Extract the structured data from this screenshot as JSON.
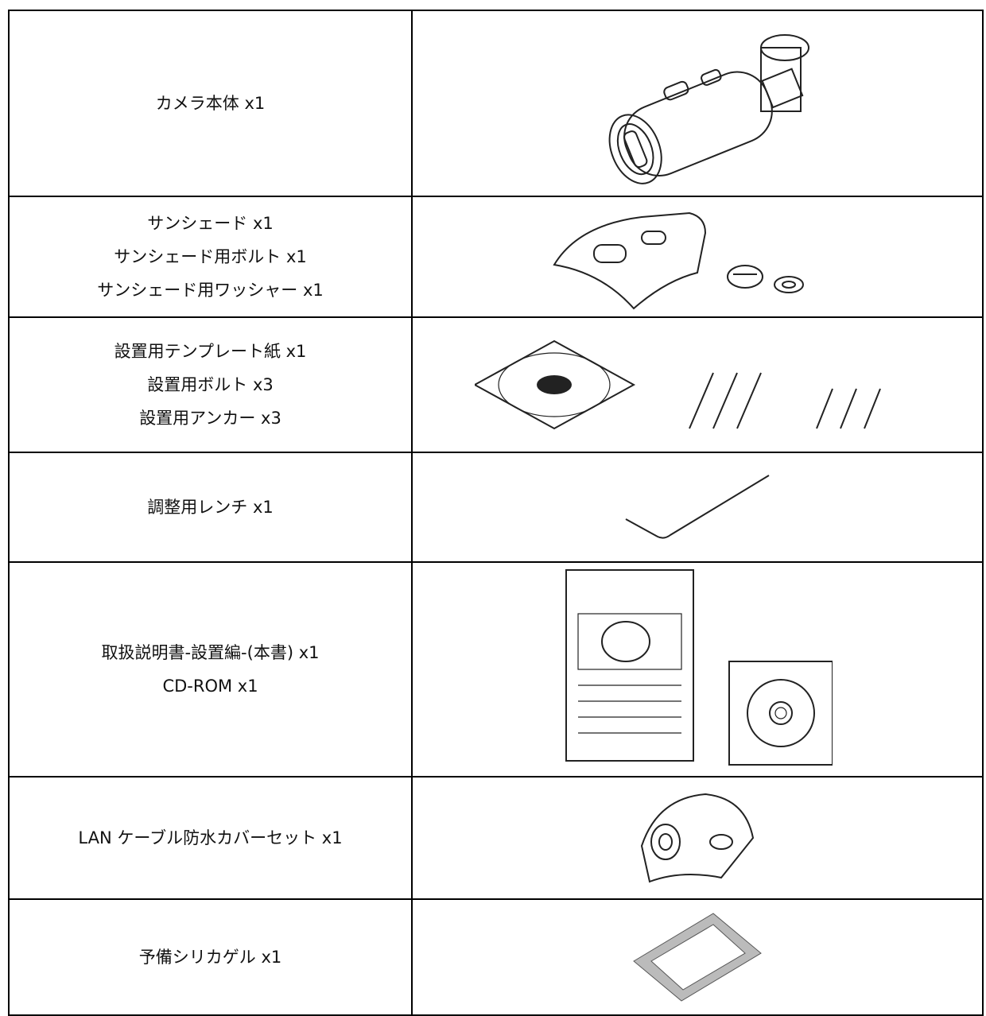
{
  "table": {
    "rows": [
      [
        "カメラ本体 x1"
      ],
      [
        "サンシェード x1",
        "サンシェード用ボルト x1",
        "サンシェード用ワッシャー x1"
      ],
      [
        "設置用テンプレート紙 x1",
        "設置用ボルト x3",
        "設置用アンカー x3"
      ],
      [
        "調整用レンチ x1"
      ],
      [
        "取扱説明書-設置編-(本書) x1",
        "CD-ROM x1"
      ],
      [
        "LAN ケーブル防水カバーセット x1"
      ],
      [
        "予備シリカゲル x1"
      ]
    ]
  }
}
